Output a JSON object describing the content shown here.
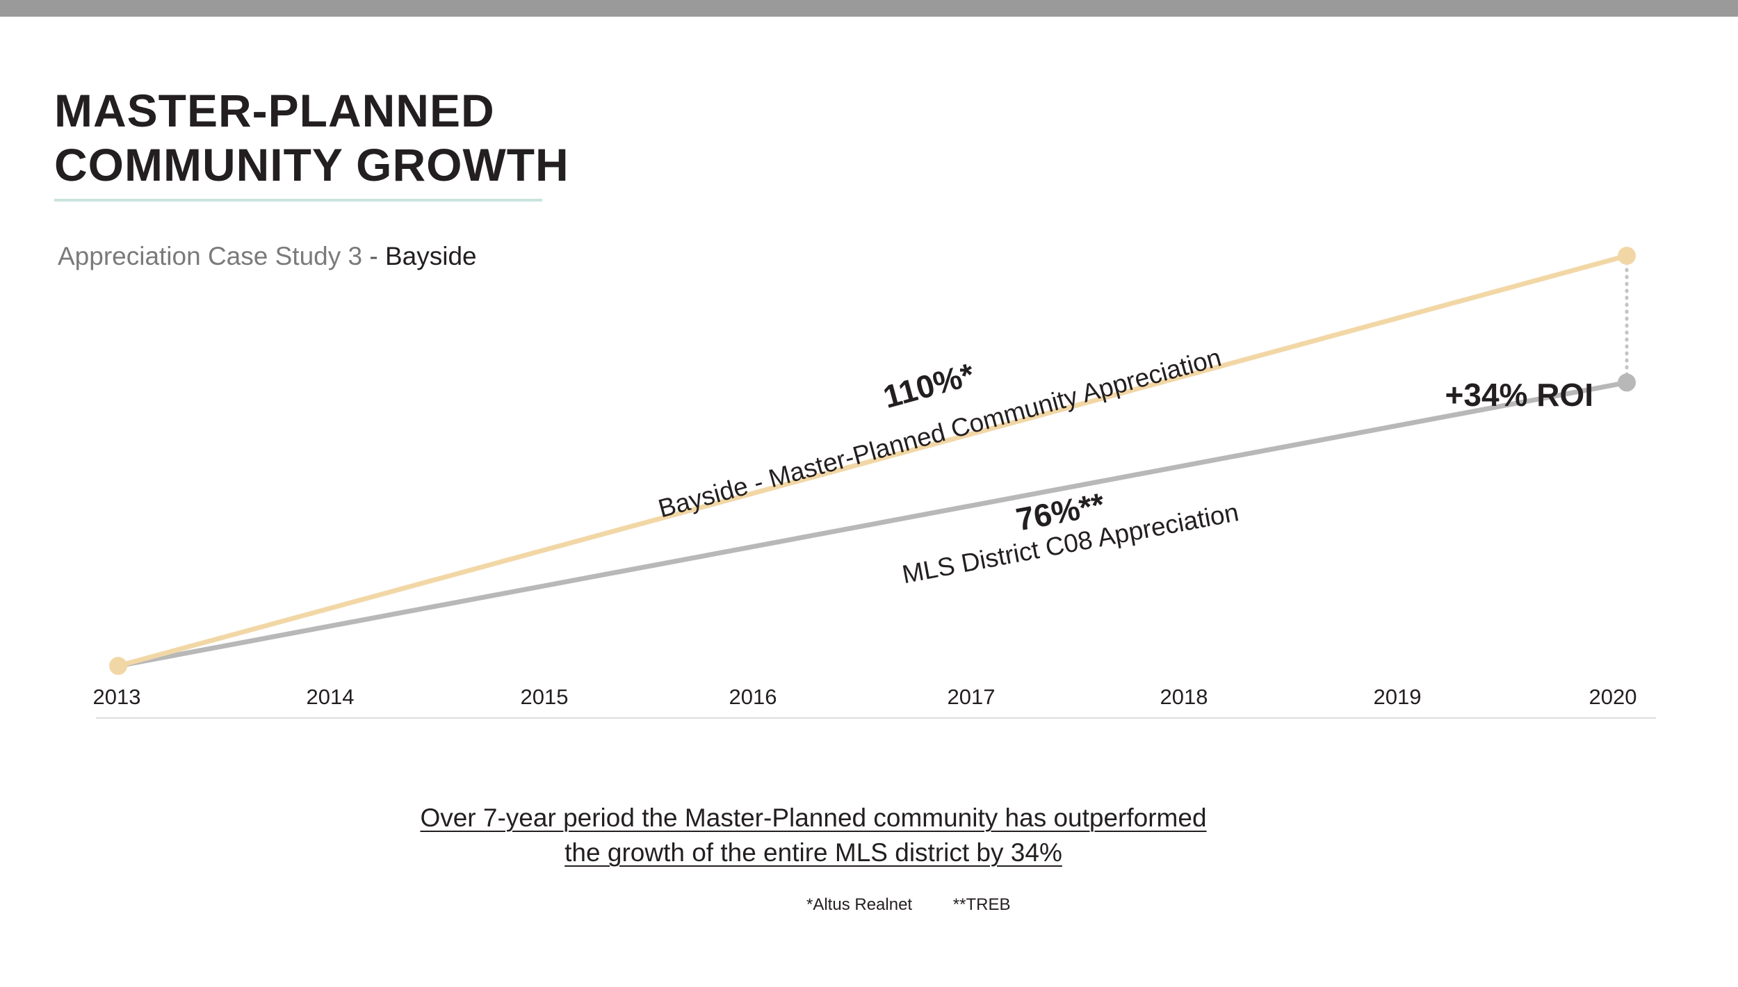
{
  "header": {
    "title_line1": "MASTER-PLANNED",
    "title_line2": "COMMUNITY GROWTH",
    "subtitle_prefix": "Appreciation Case Study 3",
    "subtitle_separator": "-",
    "subtitle_emphasis": "Bayside"
  },
  "colors": {
    "top_bar": "#9a9a9a",
    "title_rule": "#c9e3de",
    "bayside_line": "#f2d7a6",
    "mls_line": "#b8b8b8",
    "roi_connector": "#c4c4c4"
  },
  "chart_data": {
    "type": "line",
    "title": "Appreciation Case Study 3 - Bayside",
    "categories": [
      "2013",
      "2014",
      "2015",
      "2016",
      "2017",
      "2018",
      "2019",
      "2020"
    ],
    "ylim": [
      0,
      120
    ],
    "xlabel": "",
    "ylabel": "",
    "grid": false,
    "series": [
      {
        "name": "Bayside - Master-Planned Community Appreciation",
        "label": "110%*",
        "color": "#f2d7a6",
        "x": [
          2013,
          2020
        ],
        "values": [
          0,
          110
        ]
      },
      {
        "name": "MLS District C08 Appreciation",
        "label": "76%**",
        "color": "#b8b8b8",
        "x": [
          2013,
          2020
        ],
        "values": [
          0,
          76
        ]
      }
    ],
    "annotations": [
      {
        "text": "+34% ROI",
        "between": [
          "Bayside - Master-Planned Community Appreciation",
          "MLS District C08 Appreciation"
        ],
        "at": 2020
      }
    ]
  },
  "summary": {
    "line1": "Over 7-year period the Master-Planned community has outperformed",
    "line2": "the growth of the entire MLS district by 34%"
  },
  "sources": {
    "first": "*Altus Realnet",
    "second": "**TREB"
  }
}
